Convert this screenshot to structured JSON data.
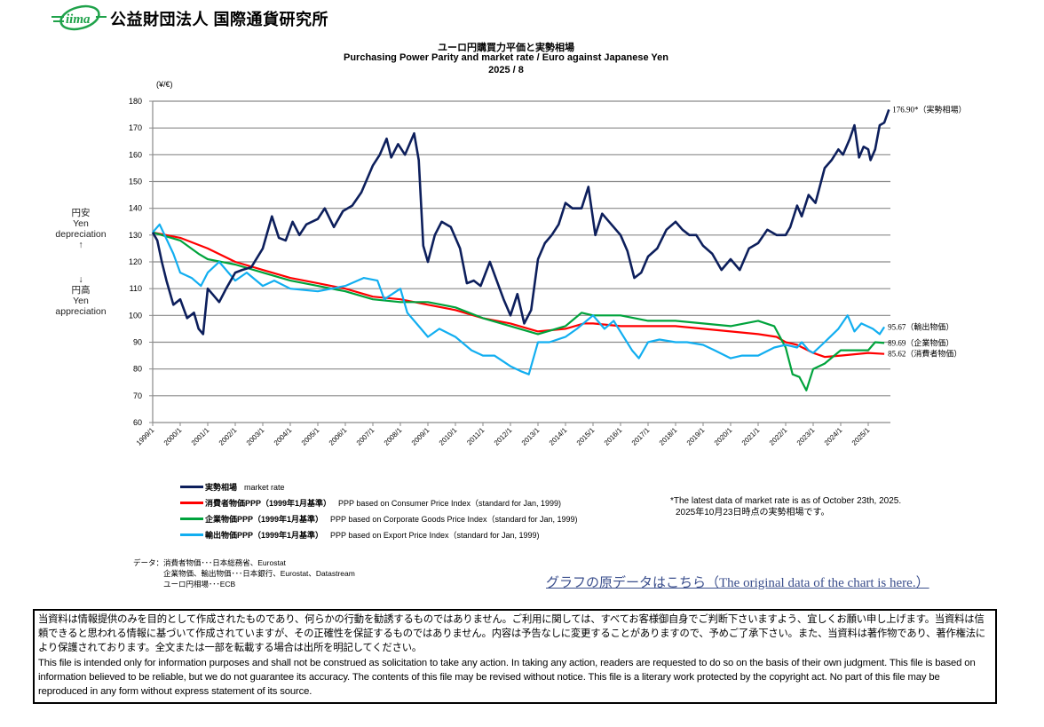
{
  "header": {
    "logo_text": "iima",
    "organization": "公益財団法人  国際通貨研究所"
  },
  "titles": {
    "title_ja": "ユーロ円購買力平価と実勢相場",
    "title_en": "Purchasing Power Parity and market rate / Euro against Japanese Yen",
    "edition": "2025 / 8"
  },
  "side_labels": {
    "up_ja": "円安",
    "up_en_1": "Yen",
    "up_en_2": "depreciation",
    "up_arrow": "↑",
    "down_arrow": "↓",
    "down_ja": "円高",
    "down_en_1": "Yen",
    "down_en_2": "appreciation"
  },
  "legend": [
    {
      "ja": "実勢相場",
      "en": "market rate",
      "color": "#0d1f5c"
    },
    {
      "ja": "消費者物価PPP（1999年1月基準）",
      "en": "PPP based on Consumer Price Index（standard for Jan, 1999)",
      "color": "#ff0000"
    },
    {
      "ja": "企業物価PPP（1999年1月基準）",
      "en": "PPP based on Corporate Goods Price Index（standard for Jan, 1999)",
      "color": "#00a33c"
    },
    {
      "ja": "輸出物価PPP（1999年1月基準）",
      "en": "PPP based on Export Price Index（standard for Jan, 1999)",
      "color": "#12aef0"
    }
  ],
  "note": {
    "en": "*The latest data of market rate is as of October 23th, 2025.",
    "ja": "2025年10月23日時点の実勢相場です。"
  },
  "sources": {
    "line1": "データ：消費者物価･･･日本総務省、Eurostat",
    "line2": "企業物価、輸出物価･･･日本銀行、Eurostat、Datastream",
    "line3": "ユーロ円相場･･･ECB"
  },
  "link_text": "グラフの原データはこちら（The original data of the chart is here.）",
  "disclaimer": {
    "ja": "当資料は情報提供のみを目的として作成されたものであり、何らかの行動を勧誘するものではありません。ご利用に関しては、すべてお客様御自身でご判断下さいますよう、宜しくお願い申し上げます。当資料は信頼できると思われる情報に基づいて作成されていますが、その正確性を保証するものではありません。内容は予告なしに変更することがありますので、予めご了承下さい。また、当資料は著作物であり、著作権法により保護されております。全文または一部を転載する場合は出所を明記してください。",
    "en": "This file is intended only for information purposes and shall not be construed as solicitation to take any action. In taking any action, readers are requested to do so on the basis of their own judgment. This file is based on information believed to be reliable, but we do not guarantee its accuracy. The contents of this file may be revised without notice. This file is a literary work protected by the copyright act. No part of this file may be reproduced in any form without express statement of its source."
  },
  "chart_data": {
    "type": "line",
    "title": "ユーロ円購買力平価と実勢相場 / Purchasing Power Parity and market rate / Euro against Japanese Yen",
    "ylabel": "(¥/€)",
    "ylim": [
      60,
      180
    ],
    "yticks": [
      60,
      70,
      80,
      90,
      100,
      110,
      120,
      130,
      140,
      150,
      160,
      170,
      180
    ],
    "xlim": [
      "1999/1",
      "2025/10"
    ],
    "xticks": [
      "1999/1",
      "2000/1",
      "2001/1",
      "2002/1",
      "2003/1",
      "2004/1",
      "2005/1",
      "2006/1",
      "2007/1",
      "2008/1",
      "2009/1",
      "2010/1",
      "2011/1",
      "2012/1",
      "2013/1",
      "2014/1",
      "2015/1",
      "2016/1",
      "2017/1",
      "2018/1",
      "2019/1",
      "2020/1",
      "2021/1",
      "2022/1",
      "2023/1",
      "2024/1",
      "2025/1"
    ],
    "grid": true,
    "legend_position": "bottom",
    "series": [
      {
        "name": "実勢相場 market rate",
        "color": "#0d1f5c",
        "end_label": "176.90*（実勢相場）",
        "points": [
          [
            "1999/1",
            131
          ],
          [
            "1999/3",
            128
          ],
          [
            "1999/5",
            120
          ],
          [
            "1999/7",
            113
          ],
          [
            "1999/10",
            104
          ],
          [
            "2000/1",
            106
          ],
          [
            "2000/4",
            99
          ],
          [
            "2000/7",
            101
          ],
          [
            "2000/9",
            95
          ],
          [
            "2000/11",
            93
          ],
          [
            "2001/1",
            110
          ],
          [
            "2001/3",
            108
          ],
          [
            "2001/6",
            105
          ],
          [
            "2001/9",
            110
          ],
          [
            "2002/1",
            116
          ],
          [
            "2002/4",
            117
          ],
          [
            "2002/8",
            118
          ],
          [
            "2003/1",
            125
          ],
          [
            "2003/5",
            137
          ],
          [
            "2003/8",
            129
          ],
          [
            "2003/11",
            128
          ],
          [
            "2004/2",
            135
          ],
          [
            "2004/5",
            130
          ],
          [
            "2004/8",
            134
          ],
          [
            "2005/1",
            136
          ],
          [
            "2005/4",
            140
          ],
          [
            "2005/8",
            133
          ],
          [
            "2005/12",
            139
          ],
          [
            "2006/4",
            141
          ],
          [
            "2006/8",
            146
          ],
          [
            "2007/1",
            156
          ],
          [
            "2007/4",
            160
          ],
          [
            "2007/7",
            166
          ],
          [
            "2007/9",
            159
          ],
          [
            "2007/12",
            164
          ],
          [
            "2008/3",
            160
          ],
          [
            "2008/7",
            168
          ],
          [
            "2008/9",
            158
          ],
          [
            "2008/11",
            126
          ],
          [
            "2009/1",
            120
          ],
          [
            "2009/4",
            130
          ],
          [
            "2009/7",
            135
          ],
          [
            "2009/11",
            133
          ],
          [
            "2010/3",
            125
          ],
          [
            "2010/6",
            112
          ],
          [
            "2010/9",
            113
          ],
          [
            "2010/12",
            111
          ],
          [
            "2011/4",
            120
          ],
          [
            "2011/7",
            113
          ],
          [
            "2011/10",
            106
          ],
          [
            "2012/1",
            100
          ],
          [
            "2012/4",
            108
          ],
          [
            "2012/7",
            97
          ],
          [
            "2012/10",
            102
          ],
          [
            "2013/1",
            121
          ],
          [
            "2013/4",
            127
          ],
          [
            "2013/7",
            130
          ],
          [
            "2013/10",
            134
          ],
          [
            "2014/1",
            142
          ],
          [
            "2014/4",
            140
          ],
          [
            "2014/8",
            140
          ],
          [
            "2014/11",
            148
          ],
          [
            "2015/2",
            130
          ],
          [
            "2015/5",
            138
          ],
          [
            "2015/8",
            135
          ],
          [
            "2016/1",
            130
          ],
          [
            "2016/4",
            124
          ],
          [
            "2016/7",
            114
          ],
          [
            "2016/10",
            116
          ],
          [
            "2017/1",
            122
          ],
          [
            "2017/5",
            125
          ],
          [
            "2017/9",
            132
          ],
          [
            "2018/1",
            135
          ],
          [
            "2018/4",
            132
          ],
          [
            "2018/7",
            130
          ],
          [
            "2018/10",
            130
          ],
          [
            "2019/1",
            126
          ],
          [
            "2019/5",
            123
          ],
          [
            "2019/9",
            117
          ],
          [
            "2020/1",
            121
          ],
          [
            "2020/5",
            117
          ],
          [
            "2020/9",
            125
          ],
          [
            "2021/1",
            127
          ],
          [
            "2021/5",
            132
          ],
          [
            "2021/9",
            130
          ],
          [
            "2022/1",
            130
          ],
          [
            "2022/3",
            133
          ],
          [
            "2022/6",
            141
          ],
          [
            "2022/8",
            137
          ],
          [
            "2022/11",
            145
          ],
          [
            "2023/2",
            142
          ],
          [
            "2023/6",
            155
          ],
          [
            "2023/9",
            158
          ],
          [
            "2023/12",
            162
          ],
          [
            "2024/2",
            160
          ],
          [
            "2024/5",
            166
          ],
          [
            "2024/7",
            171
          ],
          [
            "2024/9",
            159
          ],
          [
            "2024/11",
            163
          ],
          [
            "2025/1",
            162
          ],
          [
            "2025/2",
            158
          ],
          [
            "2025/4",
            162
          ],
          [
            "2025/6",
            171
          ],
          [
            "2025/8",
            172
          ],
          [
            "2025/10",
            176.9
          ]
        ]
      },
      {
        "name": "消費者物価PPP PPP based on Consumer Price Index",
        "color": "#ff0000",
        "end_label": "85.62（消費者物価）",
        "points": [
          [
            "1999/1",
            131
          ],
          [
            "2000/1",
            129
          ],
          [
            "2001/1",
            125
          ],
          [
            "2002/1",
            120
          ],
          [
            "2003/1",
            117
          ],
          [
            "2004/1",
            114
          ],
          [
            "2005/1",
            112
          ],
          [
            "2006/1",
            110
          ],
          [
            "2007/1",
            107
          ],
          [
            "2008/1",
            106
          ],
          [
            "2009/1",
            104
          ],
          [
            "2010/1",
            102
          ],
          [
            "2011/1",
            99
          ],
          [
            "2012/1",
            97
          ],
          [
            "2013/1",
            94
          ],
          [
            "2014/1",
            95
          ],
          [
            "2014/9",
            97
          ],
          [
            "2015/1",
            97
          ],
          [
            "2016/1",
            96
          ],
          [
            "2017/1",
            96
          ],
          [
            "2018/1",
            96
          ],
          [
            "2019/1",
            95
          ],
          [
            "2020/1",
            94
          ],
          [
            "2021/1",
            93
          ],
          [
            "2021/9",
            92
          ],
          [
            "2022/1",
            90
          ],
          [
            "2022/6",
            89
          ],
          [
            "2023/1",
            86
          ],
          [
            "2023/6",
            84.5
          ],
          [
            "2024/1",
            85
          ],
          [
            "2025/1",
            86
          ],
          [
            "2025/8",
            85.62
          ]
        ]
      },
      {
        "name": "企業物価PPP PPP based on Corporate Goods Price Index",
        "color": "#00a33c",
        "end_label": "89.69（企業物価）",
        "points": [
          [
            "1999/1",
            131
          ],
          [
            "2000/1",
            128
          ],
          [
            "2000/9",
            123
          ],
          [
            "2001/1",
            121
          ],
          [
            "2002/1",
            119
          ],
          [
            "2003/1",
            116
          ],
          [
            "2004/1",
            113
          ],
          [
            "2005/1",
            111
          ],
          [
            "2006/1",
            109
          ],
          [
            "2007/1",
            106
          ],
          [
            "2008/1",
            105
          ],
          [
            "2009/1",
            105
          ],
          [
            "2010/1",
            103
          ],
          [
            "2011/1",
            99
          ],
          [
            "2012/1",
            96
          ],
          [
            "2013/1",
            93
          ],
          [
            "2014/1",
            96
          ],
          [
            "2014/8",
            101
          ],
          [
            "2015/1",
            100
          ],
          [
            "2016/1",
            100
          ],
          [
            "2017/1",
            98
          ],
          [
            "2018/1",
            98
          ],
          [
            "2019/1",
            97
          ],
          [
            "2020/1",
            96
          ],
          [
            "2021/1",
            98
          ],
          [
            "2021/8",
            96
          ],
          [
            "2022/1",
            88
          ],
          [
            "2022/4",
            78
          ],
          [
            "2022/7",
            77
          ],
          [
            "2022/10",
            72
          ],
          [
            "2023/1",
            80
          ],
          [
            "2023/6",
            82
          ],
          [
            "2024/1",
            87
          ],
          [
            "2024/6",
            87
          ],
          [
            "2025/1",
            87
          ],
          [
            "2025/4",
            90
          ],
          [
            "2025/8",
            89.69
          ]
        ]
      },
      {
        "name": "輸出物価PPP PPP based on Export Price Index",
        "color": "#12aef0",
        "end_label": "95.67（輸出物価）",
        "points": [
          [
            "1999/1",
            131
          ],
          [
            "1999/4",
            134
          ],
          [
            "1999/10",
            123
          ],
          [
            "2000/1",
            116
          ],
          [
            "2000/6",
            114
          ],
          [
            "2000/10",
            111
          ],
          [
            "2001/1",
            116
          ],
          [
            "2001/6",
            120
          ],
          [
            "2002/1",
            113
          ],
          [
            "2002/6",
            116
          ],
          [
            "2003/1",
            111
          ],
          [
            "2003/6",
            113
          ],
          [
            "2004/1",
            110
          ],
          [
            "2005/1",
            109
          ],
          [
            "2006/1",
            111
          ],
          [
            "2006/9",
            114
          ],
          [
            "2007/3",
            113
          ],
          [
            "2007/6",
            106
          ],
          [
            "2008/1",
            110
          ],
          [
            "2008/4",
            101
          ],
          [
            "2008/9",
            96
          ],
          [
            "2009/1",
            92
          ],
          [
            "2009/6",
            95
          ],
          [
            "2010/1",
            92
          ],
          [
            "2010/8",
            87
          ],
          [
            "2011/1",
            85
          ],
          [
            "2011/6",
            85
          ],
          [
            "2012/1",
            81
          ],
          [
            "2012/6",
            79
          ],
          [
            "2012/9",
            78
          ],
          [
            "2013/1",
            90
          ],
          [
            "2013/6",
            90
          ],
          [
            "2014/1",
            92
          ],
          [
            "2014/6",
            95
          ],
          [
            "2015/1",
            100
          ],
          [
            "2015/6",
            95
          ],
          [
            "2015/10",
            98
          ],
          [
            "2016/6",
            87
          ],
          [
            "2016/9",
            84
          ],
          [
            "2017/1",
            90
          ],
          [
            "2017/6",
            91
          ],
          [
            "2018/1",
            90
          ],
          [
            "2018/6",
            90
          ],
          [
            "2019/1",
            89
          ],
          [
            "2019/6",
            87
          ],
          [
            "2020/1",
            84
          ],
          [
            "2020/6",
            85
          ],
          [
            "2021/1",
            85
          ],
          [
            "2021/8",
            88
          ],
          [
            "2022/1",
            89
          ],
          [
            "2022/6",
            88
          ],
          [
            "2022/8",
            90
          ],
          [
            "2022/11",
            87
          ],
          [
            "2023/1",
            86
          ],
          [
            "2023/6",
            90
          ],
          [
            "2023/12",
            95
          ],
          [
            "2024/4",
            100
          ],
          [
            "2024/7",
            94
          ],
          [
            "2024/10",
            97
          ],
          [
            "2025/3",
            95
          ],
          [
            "2025/6",
            93
          ],
          [
            "2025/8",
            95.67
          ]
        ]
      }
    ]
  }
}
